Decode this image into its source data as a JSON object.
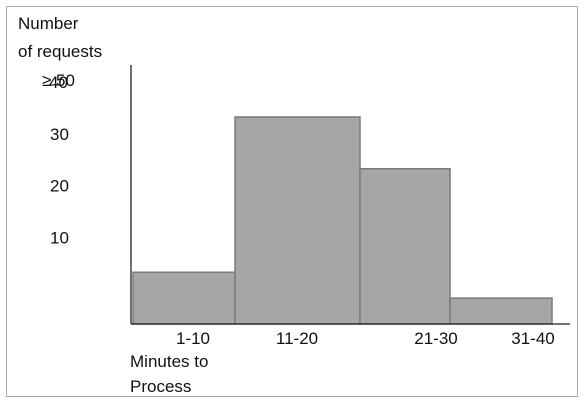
{
  "chart_data": {
    "type": "bar",
    "ylabel_lines": [
      "Number",
      "of requests"
    ],
    "xlabel_lines": [
      "Minutes to",
      "Process"
    ],
    "categories": [
      "1-10",
      "11-20",
      "21-30",
      "31-40"
    ],
    "values": [
      10,
      40,
      30,
      5
    ],
    "y_ticks": [
      {
        "value": 10,
        "label": "10"
      },
      {
        "value": 20,
        "label": "20"
      },
      {
        "value": 30,
        "label": "30"
      },
      {
        "value": 40,
        "label": "40"
      },
      {
        "value": 50,
        "label": "≥ 50"
      }
    ],
    "ylim": [
      0,
      50
    ],
    "grid": false,
    "colors": {
      "bar_fill": "#a6a6a6",
      "bar_stroke": "#7a7a7a",
      "axis": "#222222"
    }
  }
}
